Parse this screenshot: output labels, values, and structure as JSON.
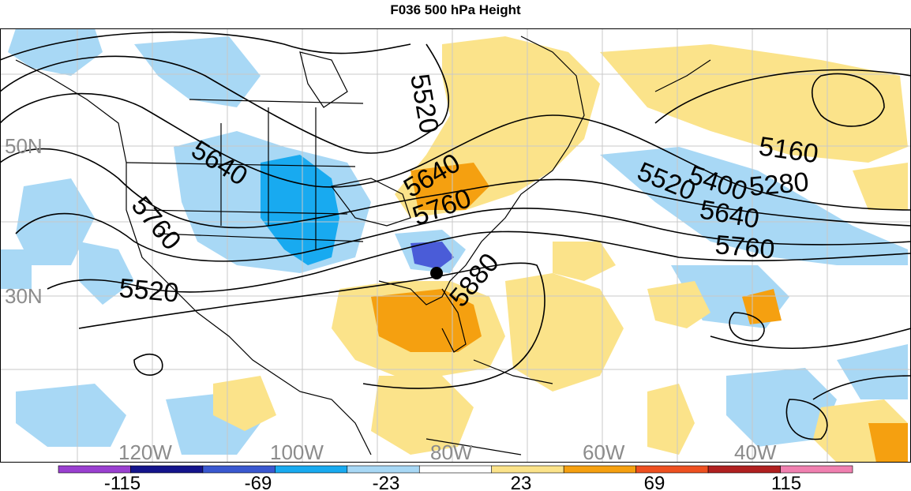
{
  "title": "F036 500 hPa Height",
  "map": {
    "lat_labels": [
      "50N",
      "30N"
    ],
    "lon_labels": [
      "120W",
      "100W",
      "80W",
      "60W",
      "40W"
    ],
    "contour_labels": [
      "5520",
      "5640",
      "5760",
      "5520",
      "5640",
      "5760",
      "5880",
      "5160",
      "5280",
      "5400",
      "5520",
      "5640",
      "5760"
    ],
    "colors": {
      "anomaly_pos_light": "#fbe38a",
      "anomaly_pos_mid": "#f5a010",
      "anomaly_pos_strong": "#ee6a10",
      "anomaly_neg_light": "#a8d8f5",
      "anomaly_neg_mid": "#18aaf0",
      "anomaly_neg_strong": "#4a5cd8",
      "contour": "#000000",
      "grid": "#c8c8c8",
      "label": "#8c8c8c"
    }
  },
  "colorbar": {
    "tick_labels": [
      "-115",
      "-69",
      "-23",
      "23",
      "69",
      "115"
    ],
    "colors": [
      "#9a40d0",
      "#14148c",
      "#3a58d0",
      "#18aaf0",
      "#a8d8f5",
      "#ffffff",
      "#fbe38a",
      "#f5a010",
      "#ee5020",
      "#b02020",
      "#f080b0"
    ]
  }
}
